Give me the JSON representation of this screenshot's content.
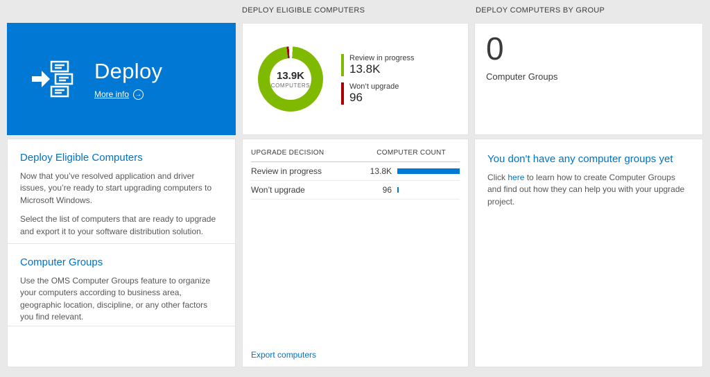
{
  "headers": {
    "middle": "DEPLOY ELIGIBLE COMPUTERS",
    "right": "DEPLOY COMPUTERS BY GROUP"
  },
  "icons": {
    "more_info_arrow": "→"
  },
  "deploy_tile": {
    "title": "Deploy",
    "more_info_label": "More info",
    "background_color": "#0078d4"
  },
  "left_card": {
    "sections": [
      {
        "heading": "Deploy Eligible Computers",
        "paragraphs": [
          "Now that you’ve resolved application and driver issues, you’re ready to start upgrading computers to Microsoft Windows.",
          "Select the list of computers that are ready to upgrade and export it to your software distribution solution."
        ]
      },
      {
        "heading": "Computer Groups",
        "paragraphs": [
          "Use the OMS Computer Groups feature to organize your computers according to business area, geographic location, discipline, or any other factors you find relevant."
        ]
      }
    ]
  },
  "middle_card": {
    "donut": {
      "center_value": "13.9K",
      "center_label": "COMPUTERS",
      "ring_color": "#7fba00",
      "accent_color": "#a80000"
    },
    "legend": [
      {
        "label": "Review in progress",
        "value": "13.8K",
        "color": "#7fba00"
      },
      {
        "label": "Won’t upgrade",
        "value": "96",
        "color": "#a80000"
      }
    ],
    "table": {
      "col_decision": "UPGRADE DECISION",
      "col_count": "COMPUTER COUNT",
      "rows": [
        {
          "label": "Review in progress",
          "value": "13.8K",
          "bar_pct": 100
        },
        {
          "label": "Won’t upgrade",
          "value": "96",
          "bar_pct": 2
        }
      ],
      "bar_color": "#0078d4"
    },
    "export_link_label": "Export computers"
  },
  "right_card": {
    "group_count": "0",
    "group_count_label": "Computer Groups",
    "empty_heading": "You don't have any computer groups yet",
    "empty_text_before_link": "Click ",
    "empty_link_text": "here",
    "empty_text_after_link": " to learn how to create Computer Groups and find out how they can help you with your upgrade project."
  },
  "colors": {
    "link_blue": "#0072c6",
    "tile_blue": "#0078d4",
    "green": "#7fba00",
    "red": "#a80000",
    "page_background": "#e9e9e9"
  }
}
